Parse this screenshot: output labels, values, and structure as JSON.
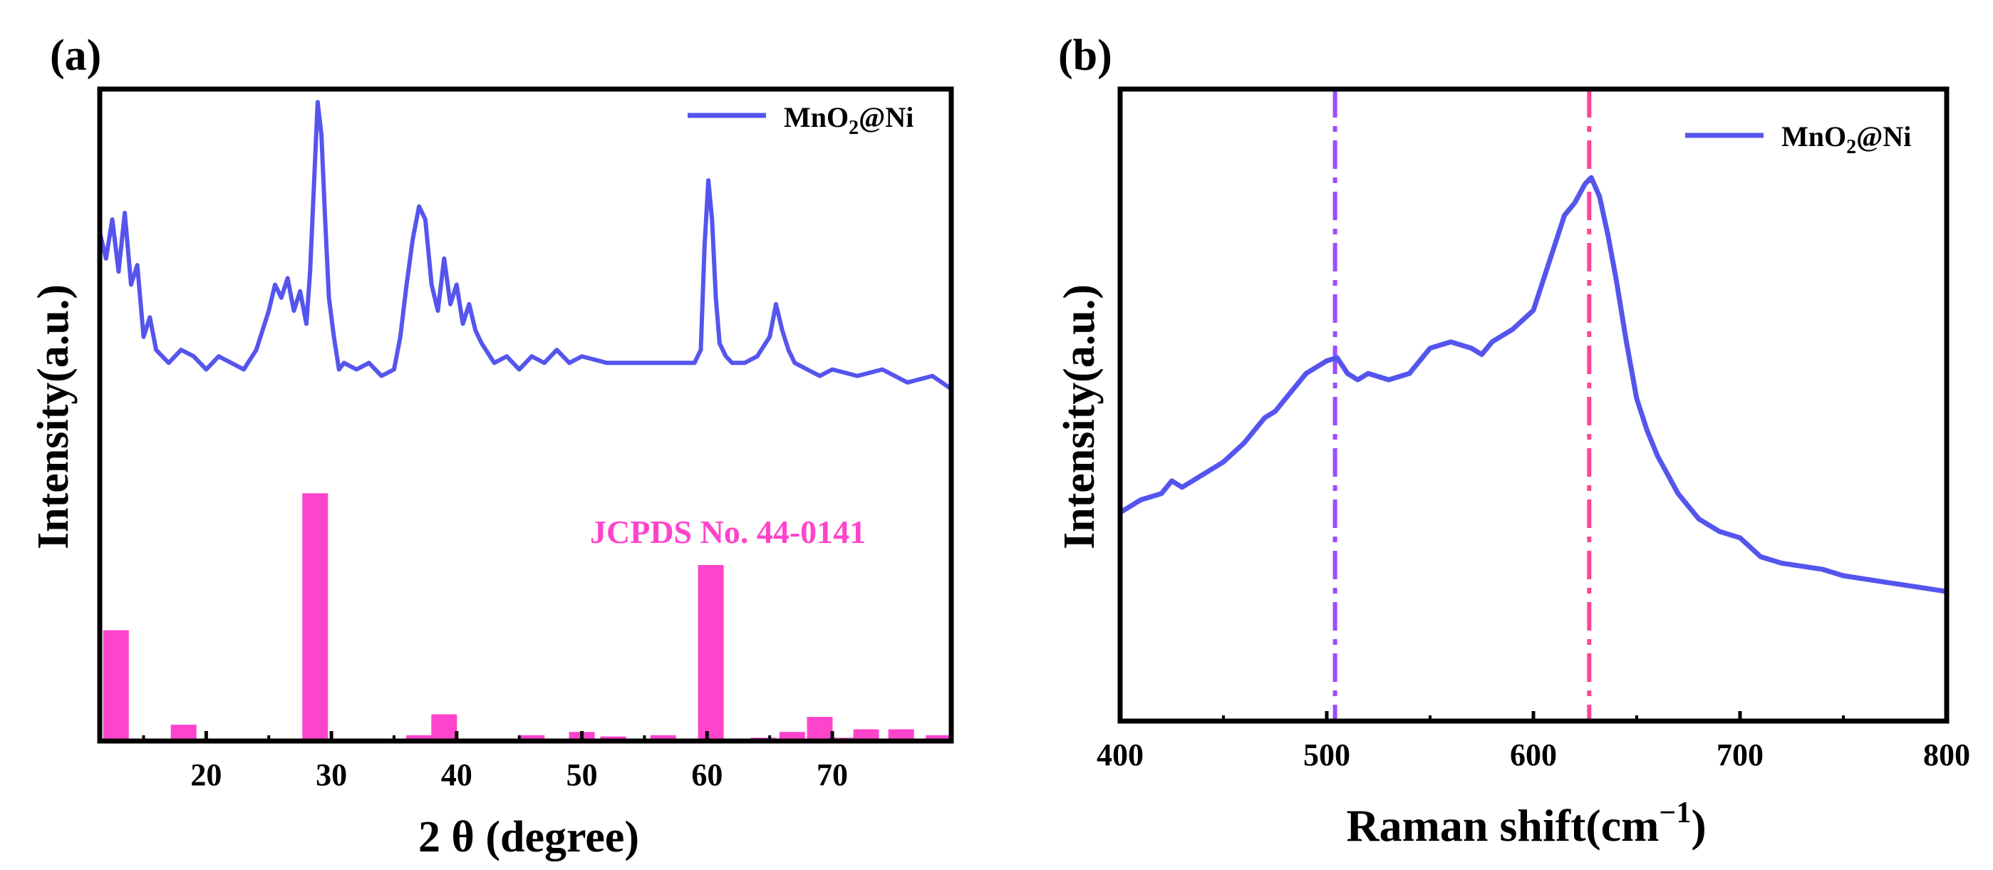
{
  "colors": {
    "series": "#5555ee",
    "reference": "#ff44cc",
    "dash_purple": "#9b4dff",
    "dash_pink": "#ff4499",
    "axis": "#000000"
  },
  "chart_data": [
    {
      "panel_label": "(a)",
      "type": "line",
      "title": "",
      "xlabel": "2 θ (degree)",
      "ylabel": "Intensity(a.u.)",
      "xlim": [
        11.5,
        79.5
      ],
      "ylim": [
        0,
        100
      ],
      "grid": false,
      "legend_position": "top-right",
      "xticks": [
        20,
        30,
        40,
        50,
        60,
        70
      ],
      "xtick_labels": [
        "20",
        "30",
        "40",
        "50",
        "60",
        "70"
      ],
      "series": [
        {
          "name": "MnO2@Ni",
          "legend_main": "MnO",
          "legend_sub": "2",
          "legend_tail": "@Ni",
          "x": [
            11.5,
            12,
            12.5,
            13,
            13.5,
            14,
            14.5,
            15,
            15.5,
            16,
            17,
            18,
            19,
            20,
            21,
            22,
            23,
            24,
            25,
            25.5,
            26,
            26.5,
            27,
            27.5,
            28,
            28.3,
            28.6,
            28.9,
            29.2,
            29.5,
            29.8,
            30.2,
            30.6,
            31,
            32,
            33,
            34,
            35,
            35.5,
            36,
            36.5,
            37,
            37.5,
            38,
            38.5,
            39,
            39.5,
            40,
            40.5,
            41,
            41.5,
            42,
            43,
            44,
            45,
            46,
            47,
            48,
            49,
            50,
            52,
            54,
            56,
            58,
            59,
            59.5,
            59.8,
            60.1,
            60.4,
            60.7,
            61,
            61.5,
            62,
            63,
            64,
            65,
            65.5,
            66,
            66.5,
            67,
            68,
            69,
            70,
            72,
            74,
            76,
            78,
            79.5
          ],
          "y": [
            78,
            74,
            80,
            72,
            81,
            70,
            73,
            62,
            65,
            60,
            58,
            60,
            59,
            57,
            59,
            58,
            57,
            60,
            66,
            70,
            68,
            71,
            66,
            69,
            64,
            72,
            85,
            98,
            93,
            80,
            68,
            62,
            57,
            58,
            57,
            58,
            56,
            57,
            62,
            70,
            77,
            82,
            80,
            70,
            66,
            74,
            67,
            70,
            64,
            67,
            63,
            61,
            58,
            59,
            57,
            59,
            58,
            60,
            58,
            59,
            58,
            58,
            58,
            58,
            58,
            60,
            76,
            86,
            80,
            68,
            61,
            59,
            58,
            58,
            59,
            62,
            67,
            63,
            60,
            58,
            57,
            56,
            57,
            56,
            57,
            55,
            56,
            54
          ]
        }
      ],
      "reference": {
        "label": "JCPDS No. 44-0141",
        "positions": [
          12.8,
          18.2,
          28.7,
          37.0,
          39.0,
          46.0,
          50.0,
          52.5,
          56.5,
          60.3,
          64.5,
          66.8,
          69.0,
          71.0,
          72.7,
          75.5,
          78.5
        ],
        "heights": [
          17,
          2.5,
          38,
          0.9,
          4.1,
          0.9,
          1.4,
          0.7,
          0.9,
          27,
          0.5,
          1.4,
          3.7,
          0.5,
          1.8,
          1.8,
          0.9
        ]
      }
    },
    {
      "panel_label": "(b)",
      "type": "line",
      "title": "",
      "xlabel": "Raman shift(cm",
      "xlabel_sup": "−1",
      "xlabel_tail": ")",
      "ylabel": "Intensity(a.u.)",
      "xlim": [
        400,
        800
      ],
      "ylim": [
        0,
        100
      ],
      "grid": false,
      "legend_position": "top-right",
      "xticks": [
        400,
        500,
        600,
        700,
        800
      ],
      "xtick_labels": [
        "400",
        "500",
        "600",
        "700",
        "800"
      ],
      "reference_lines": [
        504,
        627
      ],
      "series": [
        {
          "name": "MnO2@Ni",
          "legend_main": "MnO",
          "legend_sub": "2",
          "legend_tail": "@Ni",
          "x": [
            400,
            410,
            420,
            425,
            430,
            440,
            450,
            460,
            470,
            475,
            480,
            490,
            500,
            505,
            510,
            515,
            520,
            530,
            540,
            545,
            550,
            560,
            570,
            575,
            580,
            590,
            600,
            605,
            610,
            615,
            620,
            625,
            628,
            632,
            636,
            640,
            645,
            650,
            655,
            660,
            665,
            670,
            680,
            690,
            700,
            710,
            720,
            730,
            740,
            750,
            760,
            770,
            780,
            790,
            800
          ],
          "y": [
            33,
            35,
            36,
            38,
            37,
            39,
            41,
            44,
            48,
            49,
            51,
            55,
            57,
            57.5,
            55,
            54,
            55,
            54,
            55,
            57,
            59,
            60,
            59,
            58,
            60,
            62,
            65,
            70,
            75,
            80,
            82,
            85,
            86,
            83,
            77,
            70,
            60,
            51,
            46,
            42,
            39,
            36,
            32,
            30,
            29,
            26,
            25,
            24.5,
            24,
            23,
            22.5,
            22,
            21.5,
            21,
            20.5
          ]
        }
      ]
    }
  ]
}
